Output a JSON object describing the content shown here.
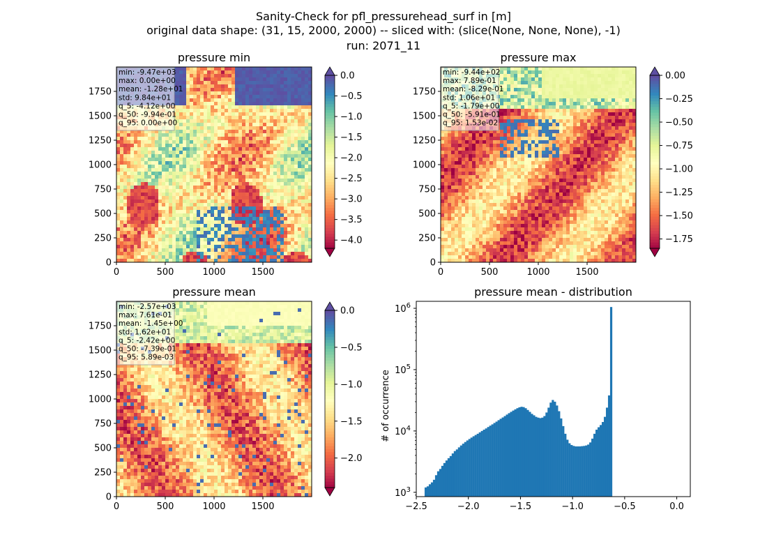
{
  "figure": {
    "title_lines": [
      "Sanity-Check for pfl_pressurehead_surf in [m]",
      "original data shape: (31, 15, 2000, 2000) -- sliced with: (slice(None, None, None), -1)",
      "run: 2071_11"
    ]
  },
  "colors": {
    "histogram_bar": "#1f77b4",
    "spectral_stops": [
      "#9e0142",
      "#d53e4f",
      "#f46d43",
      "#fdae61",
      "#fee08b",
      "#ffffbf",
      "#e6f598",
      "#abdda4",
      "#66c2a5",
      "#3288bd",
      "#5e4fa2"
    ]
  },
  "chart_data": [
    {
      "type": "heatmap",
      "title": "pressure min",
      "colormap": "Spectral",
      "xlim": [
        0,
        2000
      ],
      "ylim": [
        0,
        2000
      ],
      "xticks": [
        0,
        500,
        1000,
        1500
      ],
      "yticks": [
        0,
        250,
        500,
        750,
        1000,
        1250,
        1500,
        1750
      ],
      "colorbar": {
        "range": [
          -4.2,
          0.0
        ],
        "ticks": [
          "0.0",
          "−0.5",
          "−1.0",
          "−1.5",
          "−2.0",
          "−2.5",
          "−3.0",
          "−3.5",
          "−4.0"
        ],
        "extend": "both"
      },
      "stats": [
        "min: -9.47e+03",
        "max: 0.00e+00",
        "mean: -1.28e+01",
        "std: 9.84e+01",
        "q_5: -4.12e+00",
        "q_50: -9.94e-01",
        "q_95: 0.00e+00"
      ]
    },
    {
      "type": "heatmap",
      "title": "pressure max",
      "colormap": "Spectral",
      "xlim": [
        0,
        2000
      ],
      "ylim": [
        0,
        2000
      ],
      "xticks": [
        0,
        500,
        1000,
        1500
      ],
      "yticks": [
        0,
        250,
        500,
        750,
        1000,
        1250,
        1500,
        1750
      ],
      "colorbar": {
        "range": [
          -1.85,
          0.0
        ],
        "ticks": [
          "0.00",
          "−0.25",
          "−0.50",
          "−0.75",
          "−1.00",
          "−1.25",
          "−1.50",
          "−1.75"
        ],
        "extend": "both"
      },
      "stats": [
        "min: -9.44e+02",
        "max: 7.89e-01",
        "mean: -8.29e-01",
        "std: 1.06e+01",
        "q_5: -1.79e+00",
        "q_50: -5.91e-01",
        "q_95: 1.53e-02"
      ]
    },
    {
      "type": "heatmap",
      "title": "pressure mean",
      "colormap": "Spectral",
      "xlim": [
        0,
        2000
      ],
      "ylim": [
        0,
        2000
      ],
      "xticks": [
        0,
        500,
        1000,
        1500
      ],
      "yticks": [
        0,
        250,
        500,
        750,
        1000,
        1250,
        1500,
        1750
      ],
      "colorbar": {
        "range": [
          -2.4,
          0.0
        ],
        "ticks": [
          "0.0",
          "−0.5",
          "−1.0",
          "−1.5",
          "−2.0"
        ],
        "extend": "both"
      },
      "stats": [
        "min: -2.57e+03",
        "max: 7.61e-01",
        "mean: -1.45e+00",
        "std: 1.62e+01",
        "q_5: -2.42e+00",
        "q_50: -7.39e-01",
        "q_95: 5.89e-03"
      ]
    },
    {
      "type": "bar",
      "title": "pressure mean - distribution",
      "xlabel": "",
      "ylabel": "# of occurrence",
      "yscale": "log",
      "xlim": [
        -2.5,
        0.13
      ],
      "ylim": [
        850,
        1300000
      ],
      "xticks": [
        "−2.5",
        "−2.0",
        "−1.5",
        "−1.0",
        "−0.5",
        "0.0"
      ],
      "xtick_values": [
        -2.5,
        -2.0,
        -1.5,
        -1.0,
        -0.5,
        0.0
      ],
      "yticks": [
        "10^3",
        "10^4",
        "10^5",
        "10^6"
      ],
      "ytick_values": [
        1000,
        10000,
        100000,
        1000000
      ],
      "bin_start": -2.42,
      "bin_width": 0.02,
      "values": [
        1200,
        1250,
        1350,
        1450,
        1600,
        1900,
        2200,
        2400,
        2700,
        3000,
        3300,
        3600,
        3900,
        4300,
        4700,
        5000,
        5400,
        5800,
        6200,
        6600,
        7000,
        7400,
        7800,
        8200,
        8600,
        9000,
        9500,
        10000,
        10500,
        11000,
        11600,
        12200,
        12800,
        13500,
        14200,
        15000,
        15800,
        16600,
        17500,
        18500,
        19500,
        20500,
        21500,
        22500,
        23500,
        24300,
        24800,
        24500,
        23500,
        22000,
        20500,
        19000,
        18000,
        17000,
        16500,
        16200,
        16500,
        17500,
        20000,
        24000,
        29000,
        32000,
        30000,
        26000,
        21000,
        16000,
        12000,
        9000,
        7200,
        6300,
        5900,
        5700,
        5600,
        5600,
        5600,
        5650,
        5700,
        5800,
        6000,
        6500,
        7500,
        9000,
        10500,
        11500,
        12500,
        14000,
        17000,
        24000,
        38000,
        1050000
      ]
    }
  ]
}
